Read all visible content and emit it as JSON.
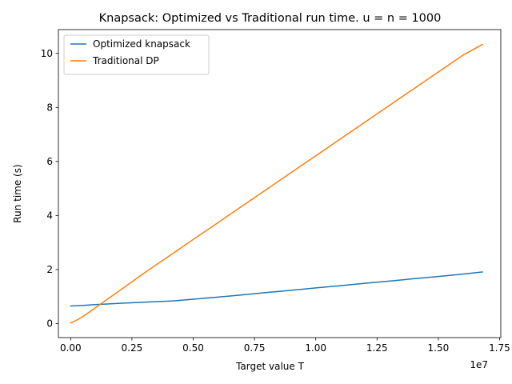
{
  "chart_data": {
    "type": "line",
    "title": "Knapsack: Optimized vs Traditional run time. u = n = 1000",
    "xlabel": "Target value T",
    "ylabel": "Run time (s)",
    "x_offset_label": "1e7",
    "xlim": [
      -500000,
      17550000
    ],
    "ylim": [
      -0.52,
      10.88
    ],
    "x_ticks": [
      0,
      2500000,
      5000000,
      7500000,
      10000000,
      12500000,
      15000000,
      17500000
    ],
    "x_tick_labels": [
      "0.00",
      "0.25",
      "0.50",
      "0.75",
      "1.00",
      "1.25",
      "1.50",
      "1.75"
    ],
    "y_ticks": [
      0,
      2,
      4,
      6,
      8,
      10
    ],
    "y_tick_labels": [
      "0",
      "2",
      "4",
      "6",
      "8",
      "10"
    ],
    "grid": false,
    "legend_position": "upper-left",
    "series": [
      {
        "name": "Optimized knapsack",
        "color": "#1f77b4",
        "x": [
          0,
          500000,
          1000000,
          2000000,
          3000000,
          4200000,
          5000000,
          6000000,
          7000000,
          8000000,
          9000000,
          10000000,
          11000000,
          12000000,
          13000000,
          14000000,
          15000000,
          16000000,
          16800000
        ],
        "y": [
          0.65,
          0.67,
          0.7,
          0.75,
          0.79,
          0.84,
          0.9,
          0.98,
          1.06,
          1.15,
          1.23,
          1.32,
          1.4,
          1.49,
          1.57,
          1.66,
          1.74,
          1.83,
          1.91
        ]
      },
      {
        "name": "Traditional DP",
        "color": "#ff7f0e",
        "x": [
          0,
          300000,
          600000,
          1000000,
          1500000,
          2000000,
          3000000,
          4000000,
          5000000,
          6000000,
          7000000,
          8000000,
          9000000,
          10000000,
          11000000,
          12000000,
          13000000,
          14000000,
          15000000,
          16000000,
          16800000
        ],
        "y": [
          0.02,
          0.15,
          0.32,
          0.58,
          0.9,
          1.22,
          1.87,
          2.49,
          3.11,
          3.73,
          4.35,
          4.97,
          5.59,
          6.21,
          6.83,
          7.45,
          8.07,
          8.69,
          9.31,
          9.93,
          10.33
        ]
      }
    ]
  }
}
